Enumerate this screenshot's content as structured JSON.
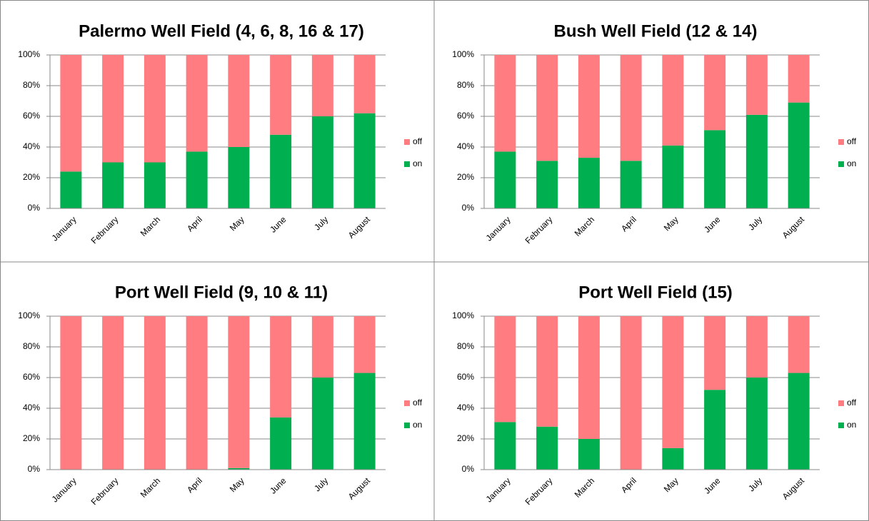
{
  "chart_data": [
    {
      "type": "bar",
      "stacked": true,
      "title": "Palermo Well Field (4, 6, 8, 16 & 17)",
      "legend": "right",
      "grid": true,
      "categories": [
        "January",
        "February",
        "March",
        "April",
        "May",
        "June",
        "July",
        "August"
      ],
      "series": [
        {
          "name": "on",
          "color": "#00b050",
          "values": [
            24,
            30,
            30,
            37,
            40,
            48,
            60,
            62
          ]
        },
        {
          "name": "off",
          "color": "#ff7c80",
          "values": [
            76,
            70,
            70,
            63,
            60,
            52,
            40,
            38
          ]
        }
      ],
      "ylim": [
        0,
        100
      ],
      "yticks": [
        {
          "value": 0,
          "label": "0%"
        },
        {
          "value": 20,
          "label": "20%"
        },
        {
          "value": 40,
          "label": "40%"
        },
        {
          "value": 60,
          "label": "60%"
        },
        {
          "value": 80,
          "label": "80%"
        },
        {
          "value": 100,
          "label": "100%"
        }
      ]
    },
    {
      "type": "bar",
      "stacked": true,
      "title": "Bush Well Field (12 & 14)",
      "legend": "right",
      "grid": true,
      "categories": [
        "January",
        "February",
        "March",
        "April",
        "May",
        "June",
        "July",
        "August"
      ],
      "series": [
        {
          "name": "on",
          "color": "#00b050",
          "values": [
            37,
            31,
            33,
            31,
            41,
            51,
            61,
            69
          ]
        },
        {
          "name": "off",
          "color": "#ff7c80",
          "values": [
            63,
            69,
            67,
            69,
            59,
            49,
            39,
            31
          ]
        }
      ],
      "ylim": [
        0,
        100
      ],
      "yticks": [
        {
          "value": 0,
          "label": "0%"
        },
        {
          "value": 20,
          "label": "20%"
        },
        {
          "value": 40,
          "label": "40%"
        },
        {
          "value": 60,
          "label": "60%"
        },
        {
          "value": 80,
          "label": "80%"
        },
        {
          "value": 100,
          "label": "100%"
        }
      ]
    },
    {
      "type": "bar",
      "stacked": true,
      "title": "Port Well Field (9, 10 & 11)",
      "legend": "right",
      "grid": true,
      "categories": [
        "January",
        "February",
        "March",
        "April",
        "May",
        "June",
        "July",
        "August"
      ],
      "series": [
        {
          "name": "on",
          "color": "#00b050",
          "values": [
            0,
            0,
            0,
            0,
            1,
            34,
            60,
            63
          ]
        },
        {
          "name": "off",
          "color": "#ff7c80",
          "values": [
            100,
            100,
            100,
            100,
            99,
            66,
            40,
            37
          ]
        }
      ],
      "ylim": [
        0,
        100
      ],
      "yticks": [
        {
          "value": 0,
          "label": "0%"
        },
        {
          "value": 20,
          "label": "20%"
        },
        {
          "value": 40,
          "label": "40%"
        },
        {
          "value": 60,
          "label": "60%"
        },
        {
          "value": 80,
          "label": "80%"
        },
        {
          "value": 100,
          "label": "100%"
        }
      ]
    },
    {
      "type": "bar",
      "stacked": true,
      "title": "Port Well Field (15)",
      "legend": "right",
      "grid": true,
      "categories": [
        "January",
        "February",
        "March",
        "April",
        "May",
        "June",
        "July",
        "August"
      ],
      "series": [
        {
          "name": "on",
          "color": "#00b050",
          "values": [
            31,
            28,
            20,
            0,
            14,
            52,
            60,
            63
          ]
        },
        {
          "name": "off",
          "color": "#ff7c80",
          "values": [
            69,
            72,
            80,
            100,
            86,
            48,
            40,
            37
          ]
        }
      ],
      "ylim": [
        0,
        100
      ],
      "yticks": [
        {
          "value": 0,
          "label": "0%"
        },
        {
          "value": 20,
          "label": "20%"
        },
        {
          "value": 40,
          "label": "40%"
        },
        {
          "value": 60,
          "label": "60%"
        },
        {
          "value": 80,
          "label": "80%"
        },
        {
          "value": 100,
          "label": "100%"
        }
      ]
    }
  ]
}
